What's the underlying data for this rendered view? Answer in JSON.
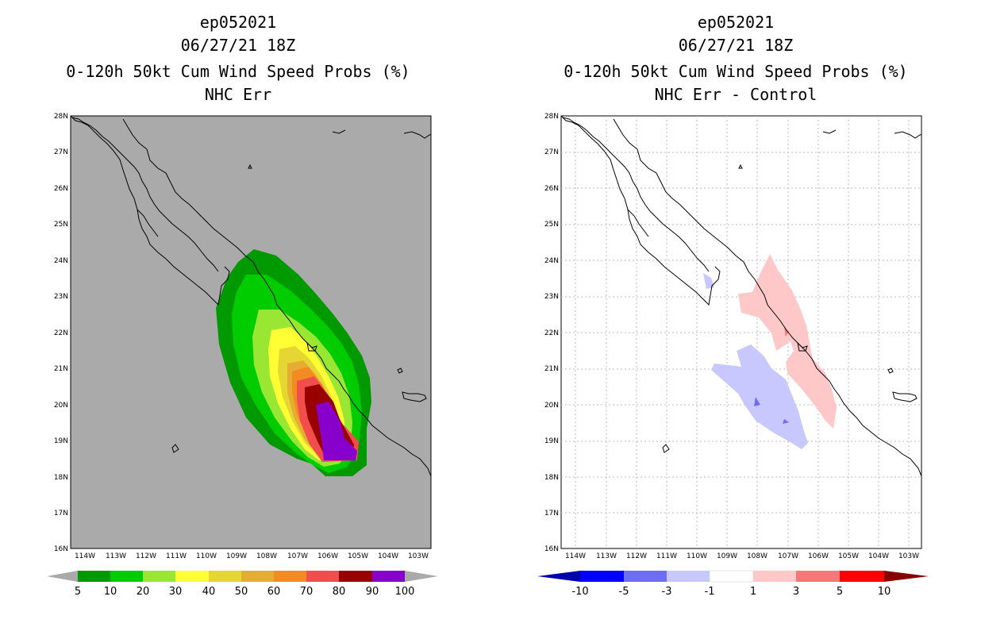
{
  "left_panel": {
    "title_line1": "ep052021",
    "title_line2": "06/27/21 18Z",
    "title_line3": "0-120h 50kt Cum Wind Speed Probs (%)",
    "title_line4": "NHC Err",
    "colorbar": {
      "labels": [
        "5",
        "10",
        "20",
        "30",
        "40",
        "50",
        "60",
        "70",
        "80",
        "90",
        "100"
      ],
      "colors": [
        "#009900",
        "#00cc00",
        "#99e633",
        "#ffff33",
        "#e6d633",
        "#e6ad33",
        "#f28c22",
        "#f24d4d",
        "#990000",
        "#8800cc"
      ],
      "under_color": "#aaaaaa",
      "over_color": "#aaaaaa"
    }
  },
  "right_panel": {
    "title_line1": "ep052021",
    "title_line2": "06/27/21 18Z",
    "title_line3": "0-120h 50kt Cum Wind Speed Probs (%)",
    "title_line4": "NHC Err - Control",
    "colorbar": {
      "labels": [
        "-10",
        "-5",
        "-3",
        "-1",
        "1",
        "3",
        "5",
        "10"
      ],
      "colors": [
        "#0000ff",
        "#6e6ef5",
        "#c8c8ff",
        "#ffffff",
        "#ffc8c8",
        "#f57878",
        "#ff0000"
      ],
      "under_color": "#0000aa",
      "over_color": "#880000"
    }
  },
  "axes": {
    "lat_labels": [
      "28N",
      "27N",
      "26N",
      "25N",
      "24N",
      "23N",
      "22N",
      "21N",
      "20N",
      "19N",
      "18N",
      "17N",
      "16N"
    ],
    "lon_labels": [
      "114W",
      "113W",
      "112W",
      "111W",
      "110W",
      "109W",
      "108W",
      "107W",
      "106W",
      "105W",
      "104W",
      "103W"
    ]
  },
  "colors": {
    "map_background_left": "#aaaaaa",
    "map_background_right": "#ffffff",
    "coastline": "#000000",
    "grid": "#bbbbbb"
  }
}
